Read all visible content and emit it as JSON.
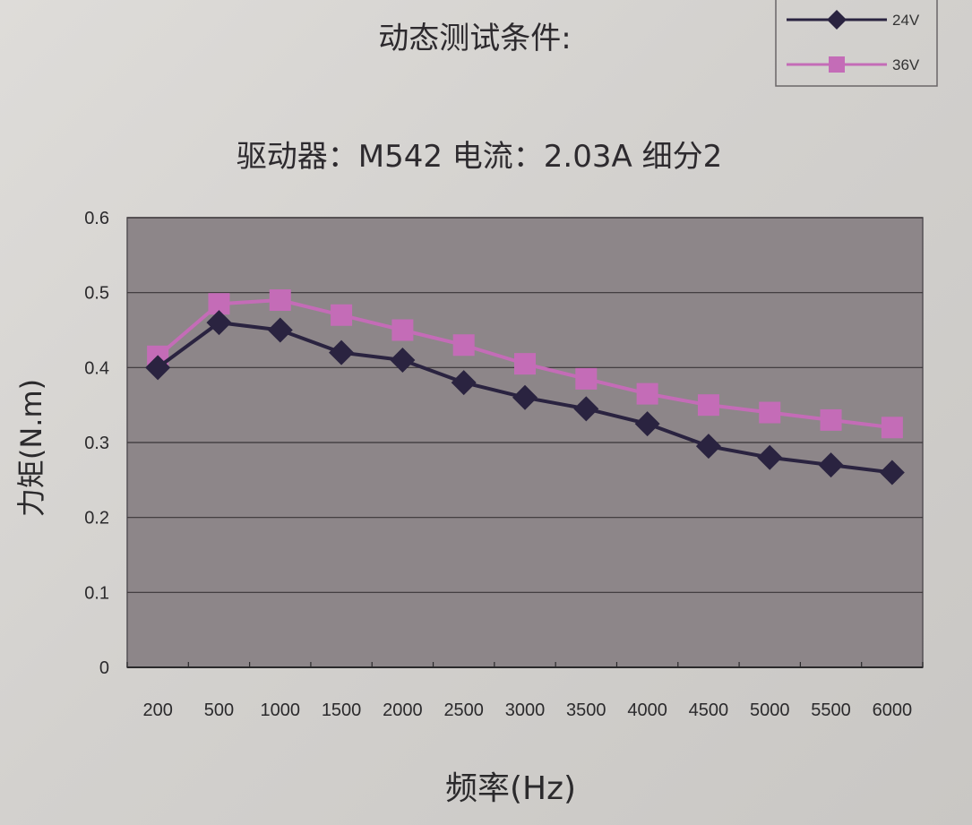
{
  "chart_data": {
    "type": "line",
    "title": "动态测试条件:",
    "subtitle": "驱动器：M542  电流：2.03A  细分2",
    "xlabel": "频率(Hz)",
    "ylabel": "力矩(N.m)",
    "categories": [
      "200",
      "500",
      "1000",
      "1500",
      "2000",
      "2500",
      "3000",
      "3500",
      "4000",
      "4500",
      "5000",
      "5500",
      "6000"
    ],
    "ylim": [
      0,
      0.6
    ],
    "yticks": [
      "0",
      "0.1",
      "0.2",
      "0.3",
      "0.4",
      "0.5",
      "0.6"
    ],
    "grid": true,
    "legend_position": "top-right",
    "series": [
      {
        "name": "24V",
        "marker": "diamond",
        "color": "#2a2340",
        "values": [
          0.4,
          0.46,
          0.45,
          0.42,
          0.41,
          0.38,
          0.36,
          0.345,
          0.325,
          0.295,
          0.28,
          0.27,
          0.26
        ]
      },
      {
        "name": "36V",
        "marker": "square",
        "color": "#c46cb7",
        "values": [
          0.415,
          0.485,
          0.49,
          0.47,
          0.45,
          0.43,
          0.405,
          0.385,
          0.365,
          0.35,
          0.34,
          0.33,
          0.32
        ]
      }
    ]
  }
}
